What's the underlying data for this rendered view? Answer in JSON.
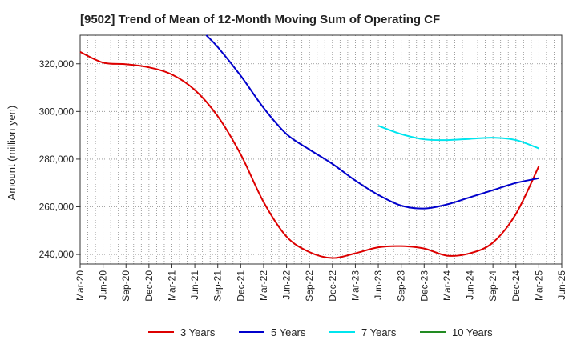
{
  "chart_data": {
    "type": "line",
    "title": "[9502]  Trend of Mean of 12-Month Moving Sum of Operating CF",
    "xlabel": "",
    "ylabel": "Amount (million yen)",
    "ylim": [
      236000,
      332000
    ],
    "yticks": [
      240000,
      260000,
      280000,
      300000,
      320000
    ],
    "ytick_labels": [
      "240,000",
      "260,000",
      "280,000",
      "300,000",
      "320,000"
    ],
    "x_categories": [
      "Mar-20",
      "Jun-20",
      "Sep-20",
      "Dec-20",
      "Mar-21",
      "Jun-21",
      "Sep-21",
      "Dec-21",
      "Mar-22",
      "Jun-22",
      "Sep-22",
      "Dec-22",
      "Mar-23",
      "Jun-23",
      "Sep-23",
      "Dec-23",
      "Mar-24",
      "Jun-24",
      "Sep-24",
      "Dec-24",
      "Mar-25",
      "Jun-25"
    ],
    "grid": true,
    "legend_position": "bottom",
    "series": [
      {
        "name": "3 Years",
        "color": "#dd0000",
        "x": [
          0,
          1,
          2,
          3,
          4,
          5,
          6,
          7,
          8,
          9,
          10,
          11,
          12,
          13,
          14,
          15,
          16,
          17,
          18,
          19,
          20
        ],
        "values": [
          325000,
          320500,
          319800,
          318500,
          315500,
          309000,
          298000,
          282000,
          262000,
          247500,
          241000,
          238500,
          240500,
          243000,
          243500,
          242500,
          239500,
          240500,
          245000,
          257000,
          277000
        ]
      },
      {
        "name": "5 Years",
        "color": "#0000cc",
        "x": [
          5.5,
          6,
          7,
          8,
          9,
          10,
          11,
          12,
          13,
          14,
          15,
          16,
          17,
          18,
          19,
          20
        ],
        "values": [
          332000,
          327000,
          315000,
          301500,
          290500,
          284000,
          278000,
          271000,
          265000,
          260500,
          259300,
          261000,
          264000,
          267000,
          270000,
          272000
        ]
      },
      {
        "name": "7 Years",
        "color": "#00e5ee",
        "x": [
          13,
          14,
          15,
          16,
          17,
          18,
          19,
          20
        ],
        "values": [
          294000,
          290500,
          288300,
          288000,
          288500,
          289000,
          288000,
          284500
        ]
      },
      {
        "name": "10 Years",
        "color": "#228b22",
        "x": [],
        "values": []
      }
    ]
  }
}
